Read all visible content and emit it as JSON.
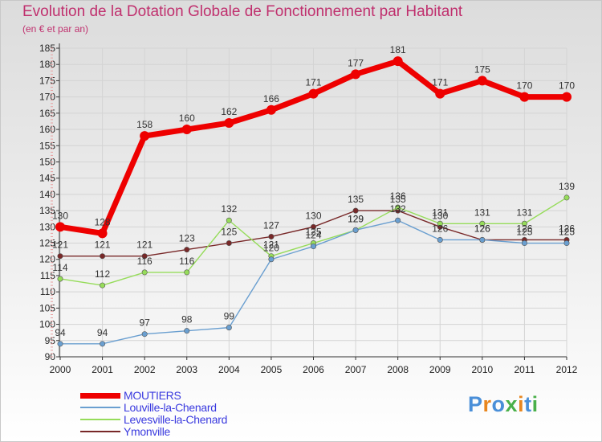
{
  "title": "Evolution de la Dotation Globale de Fonctionnement par Habitant",
  "subtitle": "(en € et par an)",
  "logo": {
    "text": "Proxiti",
    "letter_colors": [
      "#4a8fd8",
      "#e8861e",
      "#4a8fd8",
      "#4ab04a",
      "#e8861e",
      "#4a8fd8",
      "#4ab04a"
    ]
  },
  "chart_data": {
    "type": "line",
    "title": "Evolution de la Dotation Globale de Fonctionnement par Habitant",
    "ylabel": "(en € et par an)",
    "xlabel": "",
    "categories": [
      "2000",
      "2001",
      "2002",
      "2003",
      "2004",
      "2005",
      "2006",
      "2007",
      "2008",
      "2009",
      "2010",
      "2011",
      "2012"
    ],
    "ylim": [
      90,
      185
    ],
    "y_ticks": [
      90,
      95,
      100,
      105,
      110,
      115,
      120,
      125,
      130,
      135,
      140,
      145,
      150,
      155,
      160,
      165,
      170,
      175,
      180,
      185
    ],
    "grid": true,
    "legend_position": "bottom-left",
    "series": [
      {
        "name": "MOUTIERS",
        "color": "#ee0000",
        "values": [
          130,
          128,
          158,
          160,
          162,
          166,
          171,
          177,
          181,
          171,
          175,
          170,
          170
        ]
      },
      {
        "name": "Louville-la-Chenard",
        "color": "#6a9fd0",
        "values": [
          94,
          94,
          97,
          98,
          99,
          120,
          124,
          129,
          132,
          126,
          126,
          125,
          125
        ]
      },
      {
        "name": "Levesville-la-Chenard",
        "color": "#96dc5a",
        "values": [
          114,
          112,
          116,
          116,
          132,
          121,
          125,
          129,
          136,
          131,
          131,
          131,
          139
        ]
      },
      {
        "name": "Ymonville",
        "color": "#782828",
        "values": [
          121,
          121,
          121,
          123,
          125,
          127,
          130,
          135,
          135,
          130,
          126,
          126,
          126
        ]
      }
    ]
  }
}
